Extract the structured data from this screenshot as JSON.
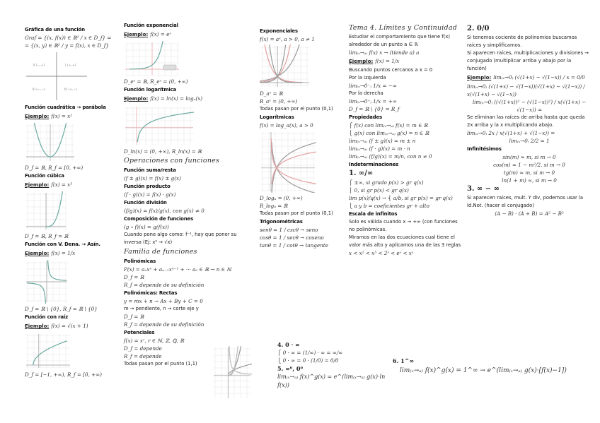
{
  "colors": {
    "curve": "#6aa9a0",
    "axis_red": "#e8a0a0",
    "grid": "#e4e4e4",
    "text": "#222222"
  },
  "columns": [
    {
      "items": [
        {
          "t": "h",
          "v": "Gráfica de una función"
        },
        {
          "t": "m",
          "v": "Graf = {(x, f(x)) ∈ ℝ² / x ∈ D_f} ="
        },
        {
          "t": "m",
          "v": "= {(x, y) ∈ ℝ² / y = f(x), x ∈ D_f}"
        },
        {
          "t": "g",
          "kind": "quadrant-axes",
          "labels": [
            "II (−,+)",
            "I (+,+)",
            "III (−,−)",
            "IV (+,−)"
          ]
        },
        {
          "t": "h",
          "v": "Función cuadrática → parábola"
        },
        {
          "t": "e",
          "label": "Ejemplo:",
          "v": "f(x) = x²"
        },
        {
          "t": "g",
          "kind": "parabola"
        },
        {
          "t": "m",
          "v": "D_f = ℝ, R_f = [0, +∞)"
        },
        {
          "t": "h",
          "v": "Función cúbica"
        },
        {
          "t": "e",
          "label": "Ejemplo:",
          "v": "f(x) = x³"
        },
        {
          "t": "g",
          "kind": "cubic"
        },
        {
          "t": "m",
          "v": "D_f = ℝ, R_f = ℝ"
        },
        {
          "t": "h",
          "v": "Función con V. Dena. → Asín."
        },
        {
          "t": "e",
          "label": "Ejemplo:",
          "v": "f(x) = 1/x"
        },
        {
          "t": "g",
          "kind": "hyperbola"
        },
        {
          "t": "m",
          "v": "D_f = ℝ \\ {0}, R_f = ℝ \\ {0}"
        },
        {
          "t": "h",
          "v": "Función con raíz"
        },
        {
          "t": "e",
          "label": "Ejemplo:",
          "v": "f(x) = √(x + 1)"
        },
        {
          "t": "g",
          "kind": "sqrt"
        },
        {
          "t": "m",
          "v": "D_f = [−1, +∞), R_f = [0, +∞)"
        }
      ]
    },
    {
      "items": [
        {
          "t": "h",
          "v": "Función exponencial"
        },
        {
          "t": "e",
          "label": "Ejemplo:",
          "v": "f(x) = eˣ"
        },
        {
          "t": "g",
          "kind": "exponential"
        },
        {
          "t": "m",
          "v": "D_eˣ = ℝ, R_eˣ = (0, +∞)"
        },
        {
          "t": "h",
          "v": "Función logarítmica"
        },
        {
          "t": "e",
          "label": "Ejemplo:",
          "v": "f(x) = ln(x) = logₑ(x)"
        },
        {
          "t": "g",
          "kind": "logarithm"
        },
        {
          "t": "m",
          "v": "D_ln(x) = (0, +∞), R_ln(x) = ℝ"
        },
        {
          "t": "T",
          "v": "Operaciones con funciones"
        },
        {
          "t": "h",
          "v": "Función suma/resta"
        },
        {
          "t": "m",
          "v": "(f ± g)(x) = f(x) ± g(x)"
        },
        {
          "t": "h",
          "v": "Función producto"
        },
        {
          "t": "m",
          "v": "(f · g)(x) = f(x) · g(x)"
        },
        {
          "t": "h",
          "v": "Función división"
        },
        {
          "t": "m",
          "v": "(f/g)(x) = f(x)/g(x), con g(x) ≠ 0"
        },
        {
          "t": "h",
          "v": "Composición de funciones"
        },
        {
          "t": "m",
          "v": "(g ∘ f)(x) = g(f(x))"
        },
        {
          "t": "t",
          "v": "Cuando pone algo como: f⁻¹, hay que poner su inversa (Ej: x² → √x)"
        },
        {
          "t": "T",
          "v": "Familia de funciones"
        },
        {
          "t": "h",
          "v": "Polinómicas"
        },
        {
          "t": "m",
          "v": "P(x) = aₙxⁿ + aₙ₋₁xⁿ⁻¹ + ··· a₀ ∈ ℝ → n ∈ ℕ"
        },
        {
          "t": "m",
          "v": "D_f = ℝ"
        },
        {
          "t": "m",
          "v": "R_f = depende de su definición"
        },
        {
          "t": "h",
          "v": "Polinómicas: Rectas"
        },
        {
          "t": "m",
          "v": "y = mx + n → Ax + By + C = 0"
        },
        {
          "t": "t",
          "v": "m → pendiente, n → corte eje y"
        },
        {
          "t": "m",
          "v": "D_f = ℝ"
        },
        {
          "t": "m",
          "v": "R_f = depende de su definición"
        },
        {
          "t": "h",
          "v": "Potenciales"
        },
        {
          "t": "m",
          "v": "f(x) = xʳ, r ∈ ℕ, ℤ, ℚ, ℝ"
        },
        {
          "t": "m",
          "v": "D_f = depende"
        },
        {
          "t": "m",
          "v": "R_f = depende"
        },
        {
          "t": "t",
          "v": "Todas pasan por el punto (1,1)"
        }
      ]
    },
    {
      "items": [
        {
          "t": "h",
          "v": "Exponenciales"
        },
        {
          "t": "m",
          "v": "f(x) = aˣ, a > 0, a ≠ 1"
        },
        {
          "t": "g",
          "kind": "exponential-family"
        },
        {
          "t": "m",
          "v": "D_aˣ = ℝ"
        },
        {
          "t": "m",
          "v": "R_aˣ = (0, +∞)"
        },
        {
          "t": "t",
          "v": "Todas pasan por el punto (0,1)"
        },
        {
          "t": "h",
          "v": "Logarítmicas"
        },
        {
          "t": "m",
          "v": "f(x) = log_a(x), a > 0"
        },
        {
          "t": "g",
          "kind": "logarithm-family"
        },
        {
          "t": "m",
          "v": "D_logₐ = (0, +∞)"
        },
        {
          "t": "m",
          "v": "R_logₐ = ℝ"
        },
        {
          "t": "t",
          "v": "Todas pasan por el punto (0,1)"
        },
        {
          "t": "h",
          "v": "Trigonométricas"
        },
        {
          "t": "m",
          "v": "senθ = 1 / cscθ → seno"
        },
        {
          "t": "m",
          "v": "cosθ = 1 / secθ → coseno"
        },
        {
          "t": "m",
          "v": "tanθ = 1 / cotθ → tangente"
        }
      ]
    },
    {
      "items": [
        {
          "t": "T",
          "v": "Tema 4. Límites y Continuidad"
        },
        {
          "t": "t",
          "v": "Estudiar el comportamiento que tiene f(x) alrededor de un punto a ∈ ℝ"
        },
        {
          "t": "m",
          "v": "lim₍ₓ→ₐ₎ f(x)  x → (tiende a) a"
        },
        {
          "t": "e",
          "label": "Ejemplo:",
          "v": "f(x) = 1/x"
        },
        {
          "t": "t",
          "v": "Buscando puntos cercanos a x = 0"
        },
        {
          "t": "t",
          "v": "Por la izquierda"
        },
        {
          "t": "m",
          "v": "lim₍ₓ→0⁻₎ 1/x = −∞"
        },
        {
          "t": "t",
          "v": "Por la derecha"
        },
        {
          "t": "m",
          "v": "lim₍ₓ→0⁺₎ 1/x = +∞"
        },
        {
          "t": "m",
          "v": "D_f = ℝ \\ {0} = R_f"
        },
        {
          "t": "h",
          "v": "Propiedades"
        },
        {
          "t": "m",
          "v": "⎧ f(x) con lim₍ₓ→ₐ₎ f(x) = m ∈ ℝ"
        },
        {
          "t": "m",
          "v": "⎩ g(x) con lim₍ₓ→ₐ₎ g(x) = n ∈ ℝ"
        },
        {
          "t": "m",
          "v": "lim₍ₓ→ₐ₎ (f ± g)(x) = m ± n"
        },
        {
          "t": "m",
          "v": "lim₍ₓ→ₐ₎ (f · g)(x) = m · n"
        },
        {
          "t": "m",
          "v": "lim₍ₓ→ₐ₎ (f/g)(x) = m/n, con n ≠ 0"
        },
        {
          "t": "h",
          "v": "Indeterminaciones"
        },
        {
          "t": "big",
          "v": "1. ∞/∞"
        },
        {
          "t": "m",
          "v": "           ⎧ ±∞, si grado p(x) > gr q(x)"
        },
        {
          "t": "m",
          "v": "           ⎪ 0, si gr p(x) < gr q(x)"
        },
        {
          "t": "m",
          "v": "lim p(x)/q(x) → ⎨ a/b, si gr p(x) = gr q(x)"
        },
        {
          "t": "m",
          "v": "           ⎩ a y b = coeficientes gr + alto"
        },
        {
          "t": "h",
          "v": "Escala de infinitos"
        },
        {
          "t": "t",
          "v": "Solo es válida cuando x → +∞ (con funciones no polinómicas."
        },
        {
          "t": "t",
          "v": "Miramos en las dos ecuaciones cual tiene el valor más alto y aplicamos una de las 3 reglas"
        },
        {
          "t": "m",
          "v": "x < x² < x⁵ < 2ˣ < eˣ < xˣ"
        }
      ]
    },
    {
      "items": [
        {
          "t": "big",
          "v": "2. 0/0"
        },
        {
          "t": "t",
          "v": "Si tenemos cociente de polinomios buscamos raíces y simplificamos."
        },
        {
          "t": "t",
          "v": "Si aparecen raíces, multiplicaciones y divisiones → conjugado (multiplicar arriba y abajo por la función)"
        },
        {
          "t": "e",
          "label": "Ejemplo:",
          "v": "lim₍ₓ→0₎ (√(1+x) − √(1−x)) / x = 0/0"
        },
        {
          "t": "m",
          "v": "lim₍ₓ→0₎ (√(1+x) − √(1−x))(√(1+x) − √(1−x)) / x(√(1+x) − √(1−x))"
        },
        {
          "t": "m",
          "c": true,
          "v": "lim₍ₓ→0₎ ((√(1+x))² − (√(1−x))²) / x(√(1+x) − √(1−x)) ="
        },
        {
          "t": "t",
          "v": "Se eliminan las raíces de arriba hasta que queda 2x arriba y la x multiplicando abajo."
        },
        {
          "t": "m",
          "v": "lim₍ₓ→0₎ 2x / x(√(1+x) + √(1−x)) ="
        },
        {
          "t": "m",
          "c": true,
          "v": "lim₍ₓ→0₎ 2/2 = 1"
        },
        {
          "t": "h",
          "v": "Infinitésimos"
        },
        {
          "t": "m",
          "c": true,
          "v": "sin(m) ≈ m, si m → 0"
        },
        {
          "t": "m",
          "c": true,
          "v": "cos(m) ≈ 1 − m²/2, si m → 0"
        },
        {
          "t": "m",
          "c": true,
          "v": "tg(m) ≈ m, si m → 0"
        },
        {
          "t": "m",
          "c": true,
          "v": "ln(1 + m) ≈, si m → 0"
        },
        {
          "t": "big",
          "v": "3. ∞ − ∞"
        },
        {
          "t": "t",
          "v": "Si aparecen raíces, mult. Y div, podemos usar la Id.Not. (hacer el conjugado)"
        },
        {
          "t": "m",
          "c": true,
          "v": "(A − B) · (A + B) = A² − B²"
        }
      ]
    }
  ],
  "bottom": {
    "s4_title": "4. 0 · ∞",
    "s4_line1": "⎧ 0 · ∞ = (1/∞) · ∞ = ∞/∞",
    "s4_line2": "⎩ 0 · ∞ = 0 · (1/0) = 0/0",
    "s5_title": "5. ∞⁰, 0⁰",
    "s5_formula": "lim₍ₓ→ₐ₎ f(x)^g(x) = e^(lim₍ₓ→ₐ₎ g(x)·ln f(x))",
    "s6_title": "6. 1^∞",
    "s6_formula": "lim₍ₓ→ₐ₎ f(x)^g(x) = 1^∞ → e^(lim₍ₓ→ₐ₎ g(x)·[f(x)−1])"
  },
  "power_graph": {
    "kind": "power-family"
  }
}
